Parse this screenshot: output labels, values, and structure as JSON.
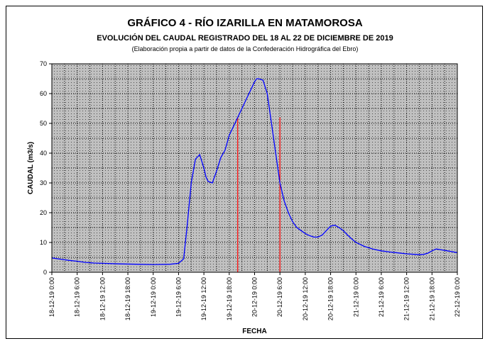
{
  "chart_data": {
    "type": "line",
    "title": "GRÁFICO 4 - RÍO IZARILLA EN MATAMOROSA",
    "subtitle": "EVOLUCIÓN DEL CAUDAL REGISTRADO DEL 18 AL 22 DE DICIEMBRE DE 2019",
    "note": "(Elaboración propia a partir de datos de la Confederación Hidrográfica del Ebro)",
    "xlabel": "FECHA",
    "ylabel": "CAUDAL (m3/s)",
    "ylim": [
      0,
      70
    ],
    "yticks": [
      0,
      10,
      20,
      30,
      40,
      50,
      60,
      70
    ],
    "xlim_hours": [
      0,
      96
    ],
    "xticks": [
      {
        "h": 0,
        "label": "18-12-19 0:00"
      },
      {
        "h": 6,
        "label": "18-12-19 6:00"
      },
      {
        "h": 12,
        "label": "18-12-19 12:00"
      },
      {
        "h": 18,
        "label": "18-12-19 18:00"
      },
      {
        "h": 24,
        "label": "19-12-19 0:00"
      },
      {
        "h": 30,
        "label": "19-12-19 6:00"
      },
      {
        "h": 36,
        "label": "19-12-19 12:00"
      },
      {
        "h": 42,
        "label": "19-12-19 18:00"
      },
      {
        "h": 48,
        "label": "20-12-19 0:00"
      },
      {
        "h": 54,
        "label": "20-12-19 6:00"
      },
      {
        "h": 60,
        "label": "20-12-19 12:00"
      },
      {
        "h": 66,
        "label": "20-12-19 18:00"
      },
      {
        "h": 72,
        "label": "21-12-19 0:00"
      },
      {
        "h": 78,
        "label": "21-12-19 6:00"
      },
      {
        "h": 84,
        "label": "21-12-19 12:00"
      },
      {
        "h": 90,
        "label": "21-12-19 18:00"
      },
      {
        "h": 96,
        "label": "22-12-19 0:00"
      }
    ],
    "grid": true,
    "colors": {
      "plot_bg": "#c0c0c0",
      "line": "#0000ff",
      "markers": "#ff0000"
    },
    "series": [
      {
        "x": [
          0,
          2,
          4,
          6,
          8,
          10,
          12,
          16,
          20,
          24,
          28,
          30,
          31.2,
          32,
          33,
          34,
          35,
          36,
          36.5,
          37,
          38,
          39,
          40,
          41,
          42,
          43,
          44,
          45,
          46,
          47,
          48,
          48.5,
          49,
          50,
          51,
          52,
          53,
          54,
          55,
          56,
          57,
          58,
          59,
          60,
          61,
          62,
          63,
          64,
          65,
          66,
          67,
          68,
          69,
          70,
          71,
          72,
          74,
          76,
          78,
          80,
          82,
          84,
          86,
          87,
          88,
          89,
          90,
          91,
          92,
          94,
          96
        ],
        "values": [
          4.8,
          4.4,
          4.0,
          3.7,
          3.3,
          3.1,
          3.0,
          2.8,
          2.7,
          2.6,
          2.7,
          3.0,
          4.5,
          15,
          30,
          38,
          39.5,
          35,
          32,
          30.5,
          30,
          34,
          38.5,
          41,
          46,
          49,
          52,
          55,
          58,
          61,
          64,
          65,
          65,
          64.5,
          60,
          50,
          40,
          30,
          24,
          20,
          17,
          15,
          14,
          13,
          12.3,
          11.8,
          11.8,
          12.5,
          14,
          15.5,
          15.8,
          15,
          14,
          12.5,
          11.2,
          10,
          8.7,
          7.8,
          7.2,
          6.8,
          6.5,
          6.2,
          6.0,
          5.9,
          6.0,
          6.4,
          7.2,
          7.8,
          7.6,
          7.1,
          6.6
        ]
      }
    ],
    "markers_h": [
      44,
      54
    ]
  }
}
